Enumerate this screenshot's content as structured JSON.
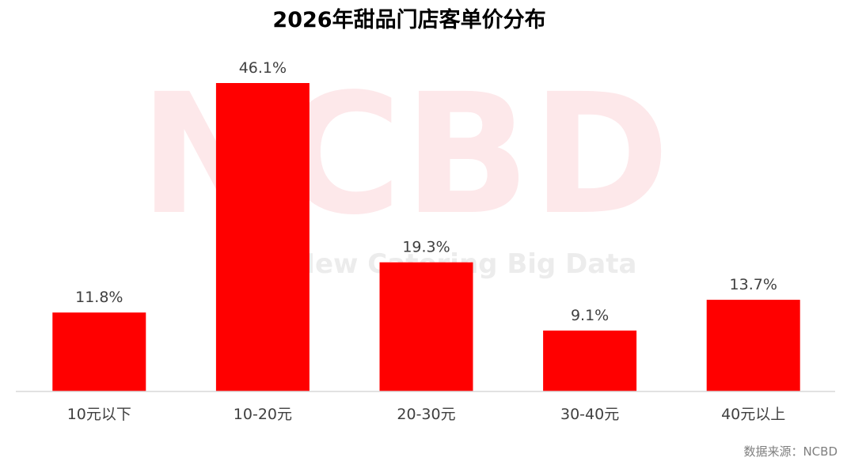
{
  "chart_data": {
    "type": "bar",
    "title": "2026年甜品门店客单价分布",
    "categories": [
      "10元以下",
      "10-20元",
      "20-30元",
      "30-40元",
      "40元以上"
    ],
    "values": [
      11.8,
      46.1,
      19.3,
      9.1,
      13.7
    ],
    "value_labels": [
      "11.8%",
      "46.1%",
      "19.3%",
      "9.1%",
      "13.7%"
    ],
    "unit": "%",
    "ylim": [
      0,
      50
    ],
    "grid": false,
    "legend": "none",
    "bar_color": "#ff0000"
  },
  "watermark": {
    "main": "NCBD",
    "sub": "New Catering Big Data"
  },
  "source": "数据来源：NCBD"
}
